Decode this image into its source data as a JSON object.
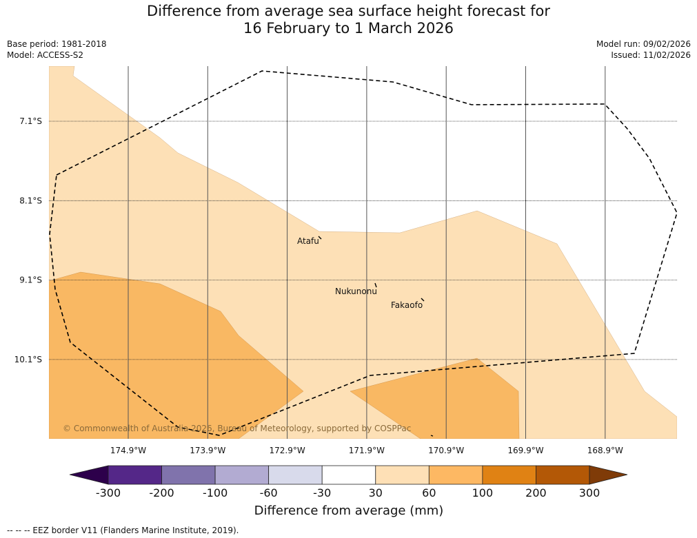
{
  "title": {
    "line1": "Difference from average sea surface height forecast for",
    "line2": "16 February to 1 March 2026"
  },
  "meta": {
    "base_period": "Base period: 1981-2018",
    "model": "Model: ACCESS-S2",
    "model_run": "Model run: 09/02/2026",
    "issued": "Issued: 11/02/2026"
  },
  "map": {
    "latitudes": [
      {
        "value": -7.1,
        "label": "7.1°S"
      },
      {
        "value": -8.1,
        "label": "8.1°S"
      },
      {
        "value": -9.1,
        "label": "9.1°S"
      },
      {
        "value": -10.1,
        "label": "10.1°S"
      }
    ],
    "longitudes": [
      {
        "value": -174.9,
        "label": "174.9°W"
      },
      {
        "value": -173.9,
        "label": "173.9°W"
      },
      {
        "value": -172.9,
        "label": "172.9°W"
      },
      {
        "value": -171.9,
        "label": "171.9°W"
      },
      {
        "value": -170.9,
        "label": "170.9°W"
      },
      {
        "value": -169.9,
        "label": "169.9°W"
      },
      {
        "value": -168.9,
        "label": "168.9°W"
      }
    ],
    "places": [
      {
        "name": "Atafu",
        "lon": -172.5,
        "lat": -8.55
      },
      {
        "name": "Nukunonu",
        "lon": -171.8,
        "lat": -9.17
      },
      {
        "name": "Fakaofo",
        "lon": -171.2,
        "lat": -9.37
      }
    ],
    "copyright": "© Commonwealth of Australia 2026, Bureau of Meteorology, supported by COSPPac",
    "colors": {
      "band_30_60": "#fde0b6",
      "band_60_100": "#f9b863",
      "eez_line": "#000000",
      "graticule": "#444444"
    }
  },
  "colorbar": {
    "ticks": [
      "-300",
      "-200",
      "-100",
      "-60",
      "-30",
      "30",
      "60",
      "100",
      "200",
      "300"
    ],
    "colors": [
      "#2d004b",
      "#542788",
      "#8073ac",
      "#b2abd2",
      "#d8daeb",
      "#ffffff",
      "#fee0b6",
      "#fdb863",
      "#e08214",
      "#b35806",
      "#7f3b08"
    ],
    "label": "Difference from average (mm)"
  },
  "footer": "--  --  -- EEZ border V11 (Flanders Marine Institute, 2019)."
}
